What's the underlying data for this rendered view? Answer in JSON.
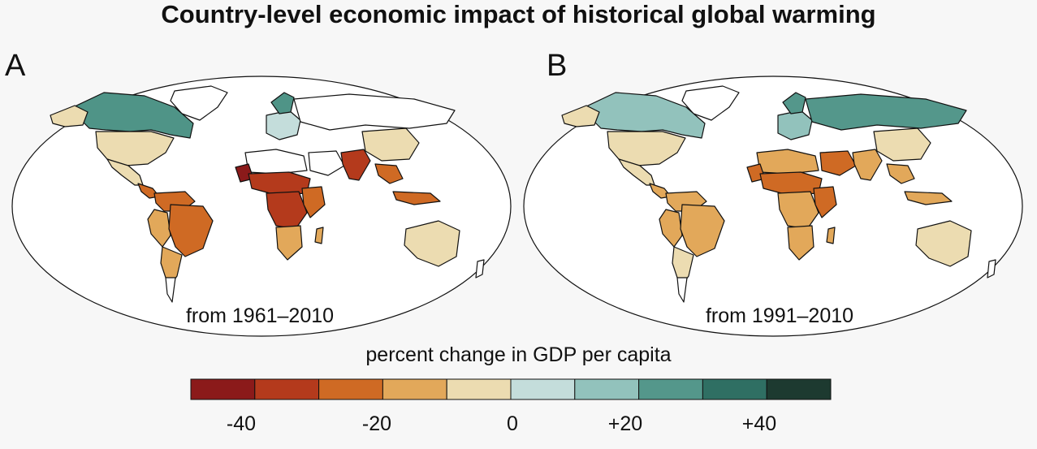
{
  "title": "Country-level economic impact of historical global warming",
  "panels": [
    {
      "letter": "A",
      "period": "from 1961–2010"
    },
    {
      "letter": "B",
      "period": "from 1991–2010"
    }
  ],
  "legend": {
    "title": "percent change in GDP per capita",
    "colors": [
      "#8b1a1a",
      "#b43a1c",
      "#cf6a24",
      "#e2a85a",
      "#ecdcb1",
      "#c4dddb",
      "#92c2bc",
      "#54978b",
      "#2f6f63",
      "#1d3a30"
    ],
    "tick_labels": [
      "-40",
      "-20",
      "0",
      "+20",
      "+40"
    ]
  },
  "colors": {
    "land_none": "#ffffff",
    "ocean": "#ffffff",
    "border": "#111111"
  }
}
